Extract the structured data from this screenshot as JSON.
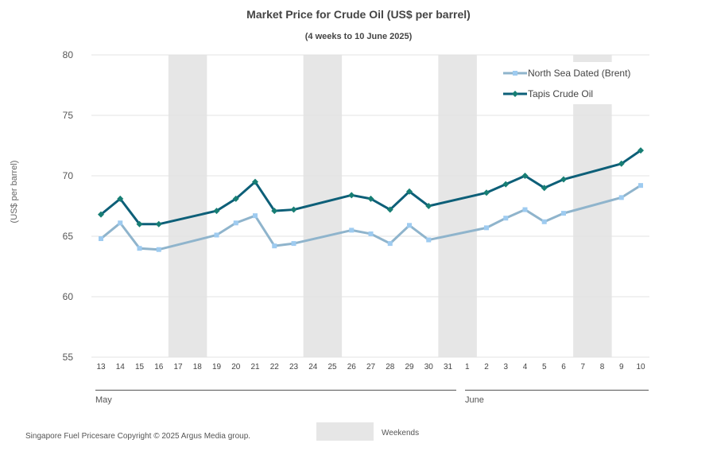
{
  "chart_data": {
    "type": "line",
    "title": "Market Price for Crude Oil (US$ per barrel)",
    "subtitle": "(4 weeks to 10 June 2025)",
    "ylabel": "(US$ per barrel)",
    "ylim": [
      55,
      80
    ],
    "yticks": [
      55,
      60,
      65,
      70,
      75,
      80
    ],
    "categories": [
      "13",
      "14",
      "15",
      "16",
      "17",
      "18",
      "19",
      "20",
      "21",
      "22",
      "23",
      "24",
      "25",
      "26",
      "27",
      "28",
      "29",
      "30",
      "31",
      "1",
      "2",
      "3",
      "4",
      "5",
      "6",
      "7",
      "8",
      "9",
      "10"
    ],
    "month_labels": [
      "May",
      "June"
    ],
    "weekend_label": "Weekends",
    "weekend_colour": "#e6e6e6",
    "series": [
      {
        "name": "North Sea Dated (Brent)",
        "color": "#8fb4cc",
        "marker_color": "#9ecbf0",
        "marker": "square",
        "values": [
          64.8,
          66.1,
          64.0,
          63.9,
          null,
          null,
          65.1,
          66.1,
          66.7,
          64.2,
          64.4,
          null,
          null,
          65.5,
          65.2,
          64.4,
          65.9,
          64.7,
          null,
          null,
          65.7,
          66.5,
          67.2,
          66.2,
          66.9,
          null,
          null,
          68.2,
          69.2
        ]
      },
      {
        "name": "Tapis Crude Oil",
        "color": "#0d5f78",
        "marker_color": "#177e74",
        "marker": "diamond",
        "values": [
          66.8,
          68.1,
          66.0,
          66.0,
          null,
          null,
          67.1,
          68.1,
          69.5,
          67.1,
          67.2,
          null,
          null,
          68.4,
          68.1,
          67.2,
          68.7,
          67.5,
          null,
          null,
          68.6,
          69.3,
          70.0,
          69.0,
          69.7,
          null,
          null,
          71.0,
          72.1
        ]
      }
    ],
    "legend_position": "top-right",
    "grid": true
  },
  "footer": "Singapore Fuel Pricesare Copyright © 2025 Argus Media group."
}
